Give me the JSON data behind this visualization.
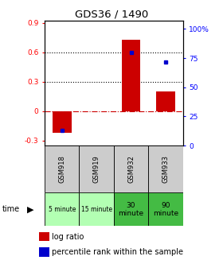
{
  "title": "GDS36 / 1490",
  "samples": [
    "GSM918",
    "GSM919",
    "GSM932",
    "GSM933"
  ],
  "time_labels": [
    "5 minute",
    "15 minute",
    "30\nminute",
    "90\nminute"
  ],
  "time_bg_light": "#b3ffb3",
  "time_bg_dark": "#44bb44",
  "time_bg_colors": [
    "#b3ffb3",
    "#b3ffb3",
    "#44bb44",
    "#44bb44"
  ],
  "log_ratios": [
    -0.22,
    0.0,
    0.73,
    0.2
  ],
  "percentile_ranks": [
    13,
    0,
    80,
    72
  ],
  "bar_color": "#cc0000",
  "dot_color": "#0000cc",
  "ylim_left": [
    -0.35,
    0.92
  ],
  "ylim_right": [
    0,
    107
  ],
  "yticks_left": [
    -0.3,
    0.0,
    0.3,
    0.6,
    0.9
  ],
  "yticks_right": [
    0,
    25,
    50,
    75,
    100
  ],
  "ytick_labels_left": [
    "-0.3",
    "0",
    "0.3",
    "0.6",
    "0.9"
  ],
  "ytick_labels_right": [
    "0",
    "25",
    "50",
    "75",
    "100%"
  ],
  "hlines": [
    0.3,
    0.6
  ],
  "background_color": "#ffffff",
  "zero_line_color": "#cc0000",
  "sample_header_bg": "#cccccc",
  "bar_width": 0.55
}
